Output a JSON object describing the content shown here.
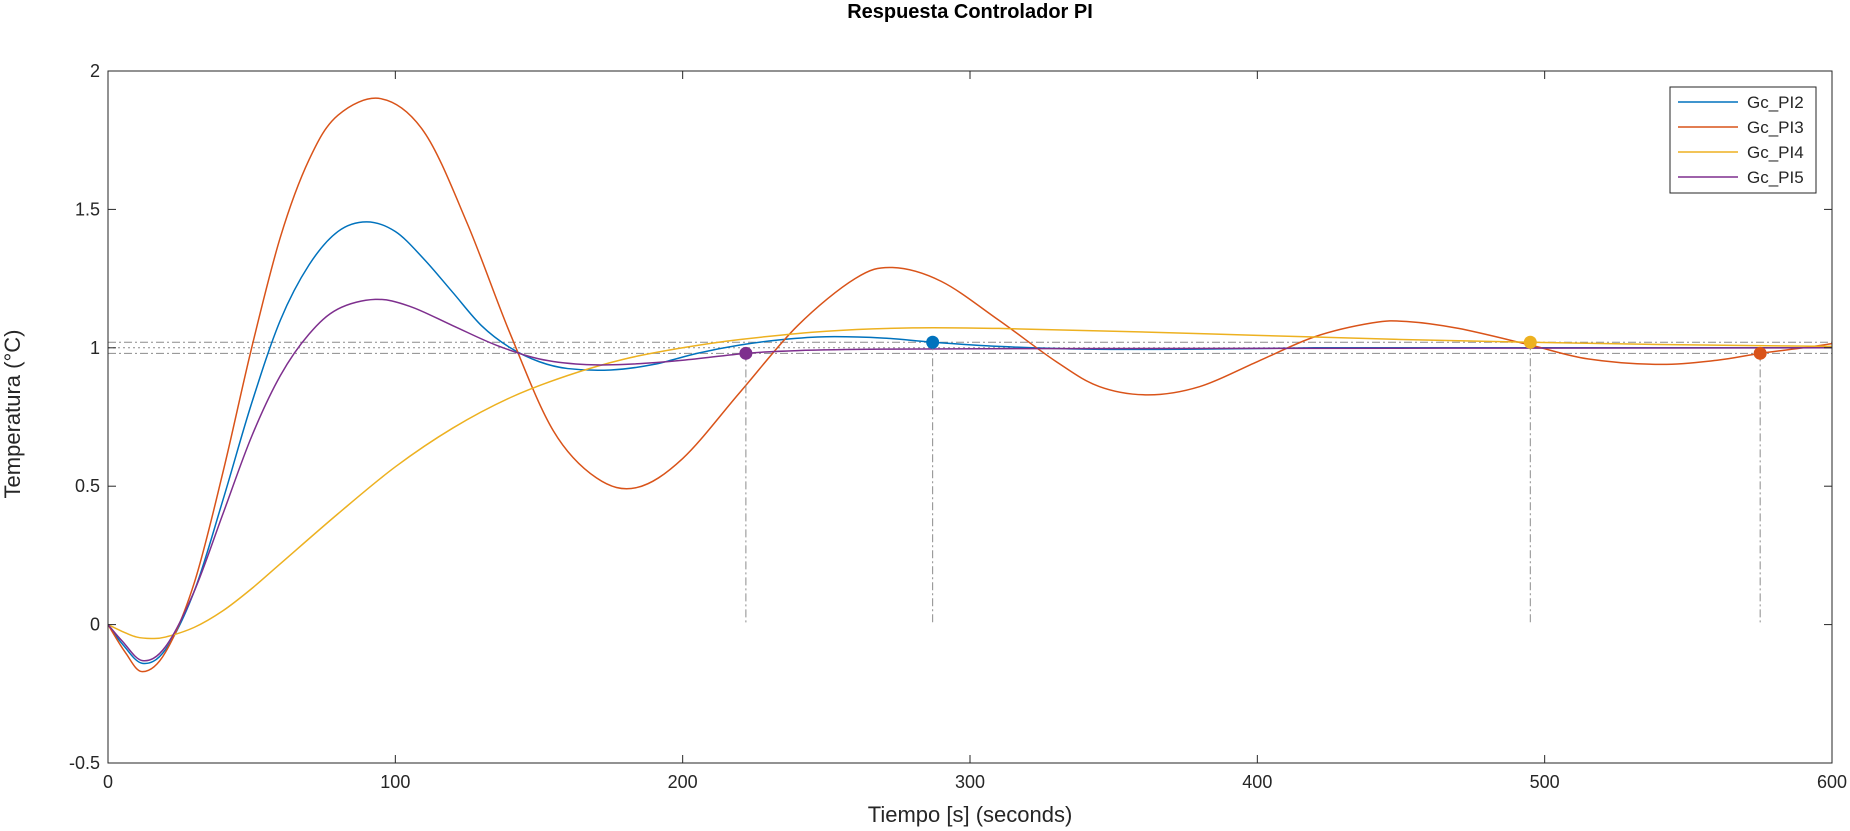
{
  "chart_data": {
    "type": "line",
    "title": "Respuesta Controlador PI",
    "xlabel": "Tiempo [s] (seconds)",
    "ylabel": "Temperatura (°C)",
    "xlim": [
      0,
      600
    ],
    "ylim": [
      -0.5,
      2
    ],
    "xticks": [
      "0",
      "100",
      "200",
      "300",
      "400",
      "500",
      "600"
    ],
    "yticks": [
      "-0.5",
      "0",
      "0.5",
      "1",
      "1.5",
      "2"
    ],
    "grid": false,
    "legend_position": "top-right",
    "reference_lines": {
      "final_value": 1,
      "settling_band_upper": 1.02,
      "settling_band_lower": 0.98
    },
    "series": [
      {
        "name": "Gc_PI2",
        "color": "#0072BD",
        "points": [
          [
            0,
            0
          ],
          [
            5,
            -0.07
          ],
          [
            12,
            -0.14
          ],
          [
            20,
            -0.09
          ],
          [
            30,
            0.12
          ],
          [
            40,
            0.45
          ],
          [
            50,
            0.8
          ],
          [
            60,
            1.1
          ],
          [
            70,
            1.3
          ],
          [
            80,
            1.42
          ],
          [
            90,
            1.455
          ],
          [
            100,
            1.42
          ],
          [
            110,
            1.32
          ],
          [
            120,
            1.2
          ],
          [
            130,
            1.08
          ],
          [
            140,
            1.0
          ],
          [
            150,
            0.95
          ],
          [
            160,
            0.925
          ],
          [
            175,
            0.92
          ],
          [
            190,
            0.94
          ],
          [
            205,
            0.98
          ],
          [
            220,
            1.01
          ],
          [
            235,
            1.03
          ],
          [
            250,
            1.04
          ],
          [
            270,
            1.035
          ],
          [
            287,
            1.02
          ],
          [
            310,
            1.005
          ],
          [
            340,
            0.995
          ],
          [
            380,
            0.995
          ],
          [
            420,
            1.0
          ],
          [
            480,
            1.0
          ],
          [
            540,
            1.0
          ],
          [
            600,
            1.0
          ]
        ],
        "settling_marker": [
          287,
          1.02
        ]
      },
      {
        "name": "Gc_PI3",
        "color": "#D95319",
        "points": [
          [
            0,
            0
          ],
          [
            6,
            -0.1
          ],
          [
            12,
            -0.17
          ],
          [
            20,
            -0.1
          ],
          [
            30,
            0.15
          ],
          [
            40,
            0.55
          ],
          [
            50,
            1.0
          ],
          [
            60,
            1.4
          ],
          [
            70,
            1.68
          ],
          [
            80,
            1.84
          ],
          [
            95,
            1.9
          ],
          [
            110,
            1.78
          ],
          [
            125,
            1.45
          ],
          [
            140,
            1.05
          ],
          [
            155,
            0.7
          ],
          [
            170,
            0.53
          ],
          [
            184,
            0.495
          ],
          [
            200,
            0.6
          ],
          [
            220,
            0.84
          ],
          [
            240,
            1.08
          ],
          [
            260,
            1.25
          ],
          [
            273,
            1.29
          ],
          [
            290,
            1.24
          ],
          [
            310,
            1.1
          ],
          [
            330,
            0.95
          ],
          [
            345,
            0.86
          ],
          [
            362,
            0.83
          ],
          [
            380,
            0.86
          ],
          [
            400,
            0.95
          ],
          [
            420,
            1.04
          ],
          [
            440,
            1.09
          ],
          [
            452,
            1.095
          ],
          [
            470,
            1.07
          ],
          [
            495,
            1.01
          ],
          [
            515,
            0.96
          ],
          [
            540,
            0.94
          ],
          [
            560,
            0.955
          ],
          [
            575,
            0.98
          ],
          [
            590,
            1.0
          ],
          [
            600,
            1.015
          ]
        ],
        "settling_marker": [
          575,
          0.98
        ]
      },
      {
        "name": "Gc_PI4",
        "color": "#EDB120",
        "points": [
          [
            0,
            0
          ],
          [
            5,
            -0.025
          ],
          [
            10,
            -0.045
          ],
          [
            15,
            -0.05
          ],
          [
            20,
            -0.045
          ],
          [
            30,
            -0.01
          ],
          [
            40,
            0.05
          ],
          [
            50,
            0.13
          ],
          [
            60,
            0.22
          ],
          [
            80,
            0.4
          ],
          [
            100,
            0.57
          ],
          [
            120,
            0.71
          ],
          [
            140,
            0.82
          ],
          [
            160,
            0.9
          ],
          [
            180,
            0.96
          ],
          [
            200,
            1.0
          ],
          [
            220,
            1.03
          ],
          [
            250,
            1.06
          ],
          [
            280,
            1.072
          ],
          [
            310,
            1.07
          ],
          [
            350,
            1.06
          ],
          [
            400,
            1.045
          ],
          [
            450,
            1.03
          ],
          [
            495,
            1.02
          ],
          [
            540,
            1.012
          ],
          [
            600,
            1.005
          ]
        ],
        "settling_marker": [
          495,
          1.02
        ]
      },
      {
        "name": "Gc_PI5",
        "color": "#7E2F8E",
        "points": [
          [
            0,
            0
          ],
          [
            5,
            -0.06
          ],
          [
            12,
            -0.13
          ],
          [
            20,
            -0.08
          ],
          [
            30,
            0.12
          ],
          [
            40,
            0.4
          ],
          [
            50,
            0.68
          ],
          [
            60,
            0.9
          ],
          [
            70,
            1.05
          ],
          [
            80,
            1.14
          ],
          [
            93,
            1.175
          ],
          [
            105,
            1.15
          ],
          [
            120,
            1.08
          ],
          [
            135,
            1.01
          ],
          [
            150,
            0.96
          ],
          [
            165,
            0.94
          ],
          [
            180,
            0.94
          ],
          [
            200,
            0.955
          ],
          [
            222,
            0.98
          ],
          [
            240,
            0.99
          ],
          [
            270,
            0.995
          ],
          [
            320,
            0.997
          ],
          [
            400,
            0.998
          ],
          [
            500,
            0.999
          ],
          [
            600,
            1.0
          ]
        ],
        "settling_marker": [
          222,
          0.98
        ]
      }
    ]
  }
}
